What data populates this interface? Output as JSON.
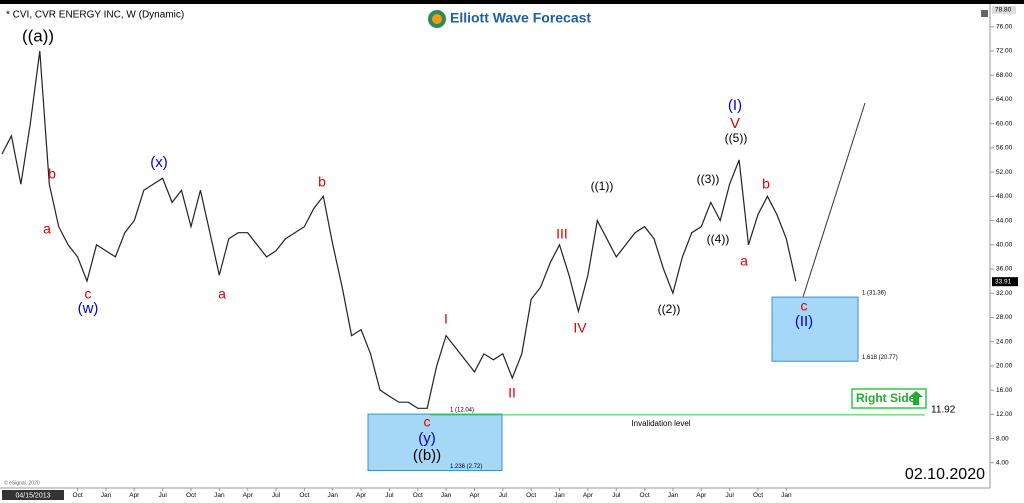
{
  "chart_data": {
    "type": "line",
    "title": "* CVI, CVR ENERGY INC, W (Dynamic)",
    "brand": "Elliott Wave Forecast",
    "date_stamp": "02.10.2020",
    "copyright": "© eSignal, 2020",
    "cursor_date": "04/15/2013",
    "categories": [
      null,
      null,
      null,
      null,
      null,
      null,
      null,
      null,
      "Oct",
      null,
      null,
      "Jan",
      null,
      null,
      "Apr",
      null,
      null,
      "Jul",
      null,
      null,
      "Oct",
      null,
      null,
      "Jan",
      null,
      null,
      "Apr",
      null,
      null,
      "Jul",
      null,
      null,
      "Oct",
      null,
      null,
      "Jan",
      null,
      null,
      "Apr",
      null,
      null,
      "Jul",
      null,
      null,
      "Oct",
      null,
      null,
      "Jan",
      null,
      null,
      "Apr",
      null,
      null,
      "Jul",
      null,
      null,
      "Oct",
      null,
      null,
      "Jan",
      null,
      null,
      "Apr",
      null,
      null,
      "Jul",
      null,
      null,
      "Oct",
      null,
      null,
      "Jan",
      null,
      null,
      "Apr",
      null,
      null,
      "Jul",
      null,
      null,
      "Oct",
      null,
      null,
      "Jan",
      null
    ],
    "series": [
      {
        "name": "CVI",
        "color": "#222222",
        "values": [
          55,
          58,
          50,
          60,
          72,
          50,
          43,
          40,
          38,
          34,
          40,
          39,
          38,
          42,
          44,
          49,
          50,
          51,
          47,
          49,
          43,
          49,
          42,
          35,
          41,
          42,
          42,
          40,
          38,
          39,
          41,
          42,
          43,
          46,
          48,
          40,
          33,
          25,
          26,
          22,
          16,
          15,
          14,
          14,
          13,
          13,
          20,
          25,
          23,
          21,
          19,
          22,
          21,
          22,
          18,
          22,
          31,
          33,
          37,
          40,
          35,
          29,
          35,
          44,
          41,
          38,
          40,
          42,
          43,
          41,
          36,
          32,
          38,
          42,
          43,
          47,
          44,
          50,
          54,
          40,
          45,
          48,
          45,
          41,
          34
        ]
      }
    ],
    "ylim": [
      0,
      79.6
    ],
    "yticks": [
      {
        "value": 4,
        "label": "4.00"
      },
      {
        "value": 8,
        "label": "8.00"
      },
      {
        "value": 12,
        "label": "12.00"
      },
      {
        "value": 16,
        "label": "16.00"
      },
      {
        "value": 20,
        "label": "20.00"
      },
      {
        "value": 24,
        "label": "24.00"
      },
      {
        "value": 28,
        "label": "28.00"
      },
      {
        "value": 32,
        "label": "32.00"
      },
      {
        "value": 36,
        "label": "36.00"
      },
      {
        "value": 40,
        "label": "40.00"
      },
      {
        "value": 44,
        "label": "44.00"
      },
      {
        "value": 48,
        "label": "48.00"
      },
      {
        "value": 52,
        "label": "52.00"
      },
      {
        "value": 56,
        "label": "56.00"
      },
      {
        "value": 60,
        "label": "60.00"
      },
      {
        "value": 64,
        "label": "64.00"
      },
      {
        "value": 68,
        "label": "68.00"
      },
      {
        "value": 72,
        "label": "72.00"
      },
      {
        "value": 76,
        "label": "76.00"
      }
    ],
    "axis_max": {
      "value": 78.8,
      "label": "78.80"
    },
    "last_price": {
      "value": 33.91,
      "label": "33.91"
    },
    "zones": [
      {
        "top": {
          "value": 12.04,
          "label": "1 (12.04)"
        },
        "bottom": {
          "value": 2.72,
          "label": "1.236 (2.72)"
        }
      },
      {
        "top": {
          "value": 31.36,
          "label": "1 (31.36)"
        },
        "bottom": {
          "value": 20.77,
          "label": "1.618 (20.77)"
        }
      }
    ],
    "invalidation": {
      "value": 11.92,
      "label": "11.92",
      "text": "Invalidation level"
    },
    "right_side": "Right Side",
    "annotations": [
      {
        "text": "((a))",
        "color": "#000000"
      },
      {
        "text": "b",
        "color": "#e00000"
      },
      {
        "text": "a",
        "color": "#e00000"
      },
      {
        "text": "c",
        "color": "#e00000"
      },
      {
        "text": "(w)",
        "color": "#0000cc"
      },
      {
        "text": "(x)",
        "color": "#0000cc"
      },
      {
        "text": "a",
        "color": "#e00000"
      },
      {
        "text": "b",
        "color": "#e00000"
      },
      {
        "text": "c",
        "color": "#e00000"
      },
      {
        "text": "(y)",
        "color": "#0000cc"
      },
      {
        "text": "((b))",
        "color": "#000000"
      },
      {
        "text": "I",
        "color": "#e00000"
      },
      {
        "text": "II",
        "color": "#e00000"
      },
      {
        "text": "III",
        "color": "#e00000"
      },
      {
        "text": "IV",
        "color": "#e00000"
      },
      {
        "text": "((1))",
        "color": "#000000"
      },
      {
        "text": "((2))",
        "color": "#000000"
      },
      {
        "text": "((3))",
        "color": "#000000"
      },
      {
        "text": "((4))",
        "color": "#000000"
      },
      {
        "text": "((5))",
        "color": "#000000"
      },
      {
        "text": "V",
        "color": "#e00000"
      },
      {
        "text": "(I)",
        "color": "#0000cc"
      },
      {
        "text": "a",
        "color": "#e00000"
      },
      {
        "text": "b",
        "color": "#e00000"
      },
      {
        "text": "c",
        "color": "#e00000"
      },
      {
        "text": "(II)",
        "color": "#0000cc"
      }
    ]
  }
}
